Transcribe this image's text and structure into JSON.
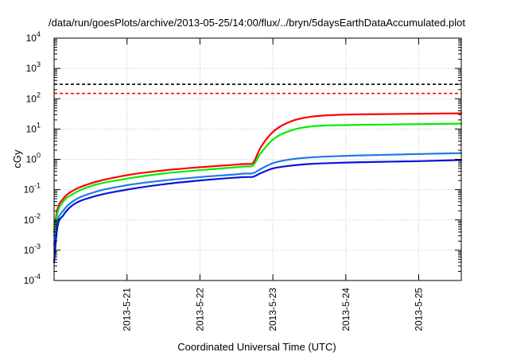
{
  "chart_data": {
    "type": "line",
    "title": "/data/run/goesPlots/archive/2013-05-25/14:00/flux/../bryn/5daysEarthDataAccumulated.plot",
    "xlabel": "Coordinated Universal Time (UTC)",
    "ylabel": "cGy",
    "y_scale": "log",
    "ylim": [
      0.0001,
      10000
    ],
    "xlim": [
      "2013-05-20 00:00",
      "2013-05-25 14:00"
    ],
    "grid": true,
    "x_ticks": [
      "2013-5-21",
      "2013-5-22",
      "2013-5-23",
      "2013-5-24",
      "2013-5-25"
    ],
    "y_ticks": [
      {
        "base": "10",
        "exp": "-4",
        "value": 0.0001
      },
      {
        "base": "10",
        "exp": "-3",
        "value": 0.001
      },
      {
        "base": "10",
        "exp": "-2",
        "value": 0.01
      },
      {
        "base": "10",
        "exp": "-1",
        "value": 0.1
      },
      {
        "base": "10",
        "exp": "0",
        "value": 1
      },
      {
        "base": "10",
        "exp": "1",
        "value": 10
      },
      {
        "base": "10",
        "exp": "2",
        "value": 100
      },
      {
        "base": "10",
        "exp": "3",
        "value": 1000
      },
      {
        "base": "10",
        "exp": "4",
        "value": 10000
      }
    ],
    "thresholds": [
      {
        "value": 300,
        "color": "#000000",
        "style": "dashed"
      },
      {
        "value": 150,
        "color": "#ff0000",
        "style": "dashed"
      }
    ],
    "series": [
      {
        "color": "#ff0000",
        "x": [
          "2013-05-20 00:00",
          "2013-05-20 01:00",
          "2013-05-20 03:00",
          "2013-05-20 06:00",
          "2013-05-20 12:00",
          "2013-05-21 00:00",
          "2013-05-21 12:00",
          "2013-05-22 00:00",
          "2013-05-22 12:00",
          "2013-05-22 15:00",
          "2013-05-22 17:00",
          "2013-05-22 20:00",
          "2013-05-23 00:00",
          "2013-05-23 06:00",
          "2013-05-23 12:00",
          "2013-05-24 00:00",
          "2013-05-24 12:00",
          "2013-05-25 00:00",
          "2013-05-25 14:00"
        ],
        "y": [
          0.004,
          0.02,
          0.05,
          0.09,
          0.16,
          0.3,
          0.43,
          0.55,
          0.67,
          0.7,
          0.71,
          2.5,
          8,
          18,
          25,
          30,
          31,
          32,
          33
        ]
      },
      {
        "color": "#00ee00",
        "x": [
          "2013-05-20 00:00",
          "2013-05-20 01:00",
          "2013-05-20 03:00",
          "2013-05-20 06:00",
          "2013-05-20 12:00",
          "2013-05-21 00:00",
          "2013-05-21 12:00",
          "2013-05-22 00:00",
          "2013-05-22 12:00",
          "2013-05-22 15:00",
          "2013-05-22 17:00",
          "2013-05-22 20:00",
          "2013-05-23 00:00",
          "2013-05-23 06:00",
          "2013-05-23 12:00",
          "2013-05-24 00:00",
          "2013-05-24 12:00",
          "2013-05-25 00:00",
          "2013-05-25 14:00"
        ],
        "y": [
          0.003,
          0.015,
          0.04,
          0.07,
          0.13,
          0.23,
          0.34,
          0.44,
          0.55,
          0.58,
          0.59,
          1.6,
          4.5,
          9,
          12,
          13.5,
          14,
          14.5,
          15
        ]
      },
      {
        "color": "#1e7be8",
        "x": [
          "2013-05-20 00:00",
          "2013-05-20 01:00",
          "2013-05-20 03:00",
          "2013-05-20 06:00",
          "2013-05-20 12:00",
          "2013-05-21 00:00",
          "2013-05-21 12:00",
          "2013-05-22 00:00",
          "2013-05-22 12:00",
          "2013-05-22 15:00",
          "2013-05-22 17:00",
          "2013-05-22 20:00",
          "2013-05-23 00:00",
          "2013-05-23 06:00",
          "2013-05-23 12:00",
          "2013-05-24 00:00",
          "2013-05-24 12:00",
          "2013-05-25 00:00",
          "2013-05-25 14:00"
        ],
        "y": [
          0.0015,
          0.008,
          0.02,
          0.04,
          0.075,
          0.14,
          0.2,
          0.26,
          0.32,
          0.34,
          0.34,
          0.48,
          0.75,
          1.0,
          1.15,
          1.3,
          1.4,
          1.5,
          1.6
        ]
      },
      {
        "color": "#0a14d8",
        "x": [
          "2013-05-20 00:00",
          "2013-05-20 01:00",
          "2013-05-20 03:00",
          "2013-05-20 06:00",
          "2013-05-20 12:00",
          "2013-05-21 00:00",
          "2013-05-21 12:00",
          "2013-05-22 00:00",
          "2013-05-22 12:00",
          "2013-05-22 15:00",
          "2013-05-22 17:00",
          "2013-05-22 20:00",
          "2013-05-23 00:00",
          "2013-05-23 06:00",
          "2013-05-23 12:00",
          "2013-05-24 00:00",
          "2013-05-24 12:00",
          "2013-05-25 00:00",
          "2013-05-25 14:00"
        ],
        "y": [
          0.0004,
          0.005,
          0.014,
          0.03,
          0.055,
          0.1,
          0.15,
          0.2,
          0.25,
          0.26,
          0.26,
          0.35,
          0.5,
          0.62,
          0.7,
          0.78,
          0.83,
          0.87,
          0.95
        ]
      }
    ]
  }
}
